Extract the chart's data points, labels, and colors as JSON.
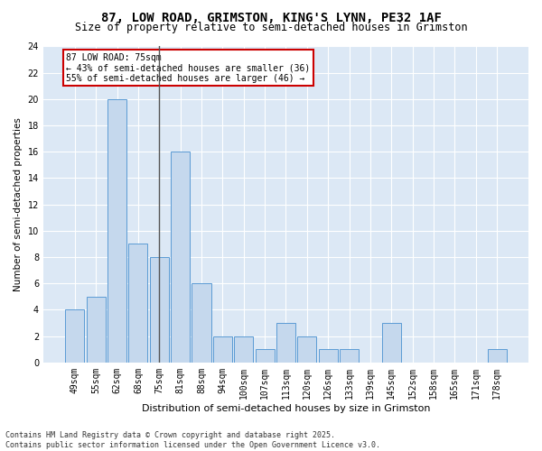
{
  "title1": "87, LOW ROAD, GRIMSTON, KING'S LYNN, PE32 1AF",
  "title2": "Size of property relative to semi-detached houses in Grimston",
  "xlabel": "Distribution of semi-detached houses by size in Grimston",
  "ylabel": "Number of semi-detached properties",
  "categories": [
    "49sqm",
    "55sqm",
    "62sqm",
    "68sqm",
    "75sqm",
    "81sqm",
    "88sqm",
    "94sqm",
    "100sqm",
    "107sqm",
    "113sqm",
    "120sqm",
    "126sqm",
    "133sqm",
    "139sqm",
    "145sqm",
    "152sqm",
    "158sqm",
    "165sqm",
    "171sqm",
    "178sqm"
  ],
  "values": [
    4,
    5,
    20,
    9,
    8,
    16,
    6,
    2,
    2,
    1,
    3,
    2,
    1,
    1,
    0,
    3,
    0,
    0,
    0,
    0,
    1
  ],
  "bar_color": "#c5d8ed",
  "bar_edge_color": "#5b9bd5",
  "highlight_index": 4,
  "highlight_line_color": "#555555",
  "annotation_text": "87 LOW ROAD: 75sqm\n← 43% of semi-detached houses are smaller (36)\n55% of semi-detached houses are larger (46) →",
  "annotation_box_color": "#ffffff",
  "annotation_box_edge_color": "#cc0000",
  "ylim": [
    0,
    24
  ],
  "yticks": [
    0,
    2,
    4,
    6,
    8,
    10,
    12,
    14,
    16,
    18,
    20,
    22,
    24
  ],
  "footer": "Contains HM Land Registry data © Crown copyright and database right 2025.\nContains public sector information licensed under the Open Government Licence v3.0.",
  "fig_bg_color": "#ffffff",
  "plot_bg_color": "#dce8f5",
  "grid_color": "#ffffff",
  "title1_fontsize": 10,
  "title2_fontsize": 8.5,
  "xlabel_fontsize": 8,
  "ylabel_fontsize": 7.5,
  "tick_fontsize": 7,
  "footer_fontsize": 6,
  "ann_fontsize": 7
}
